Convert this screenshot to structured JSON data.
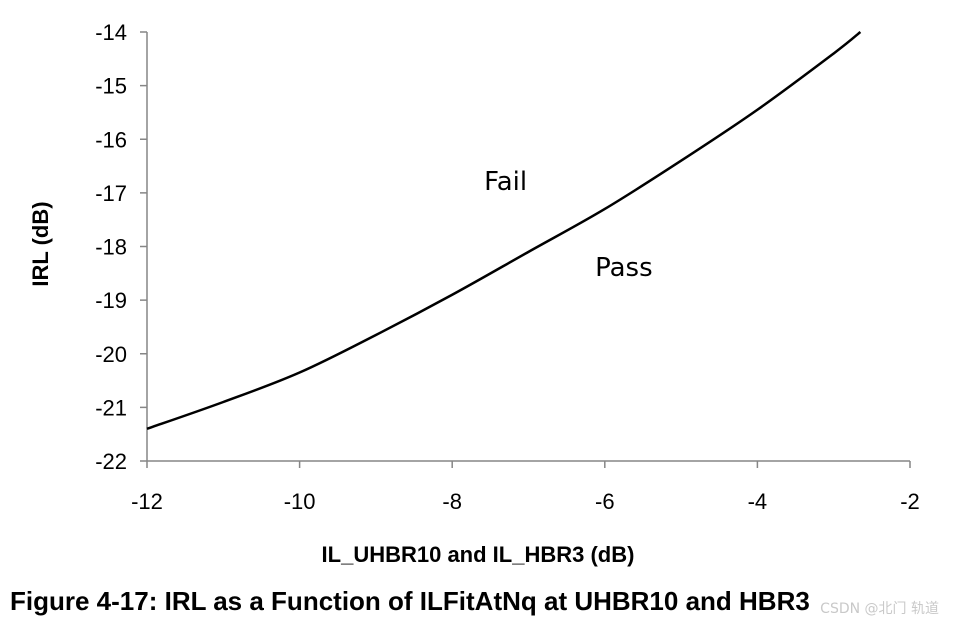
{
  "chart_data": {
    "type": "line",
    "title": "",
    "xlabel": "IL_UHBR10 and IL_HBR3 (dB)",
    "ylabel": "IRL (dB)",
    "xlim": [
      -12,
      -2
    ],
    "ylim": [
      -22,
      -14
    ],
    "xticks": [
      -12,
      -10,
      -8,
      -6,
      -4,
      -2
    ],
    "yticks": [
      -14,
      -15,
      -16,
      -17,
      -18,
      -19,
      -20,
      -21,
      -22
    ],
    "grid": false,
    "series": [
      {
        "color": "#000000",
        "x": [
          -12,
          -11,
          -10,
          -9,
          -8,
          -7,
          -6,
          -5,
          -4,
          -3,
          -2.65
        ],
        "y": [
          -21.4,
          -20.9,
          -20.35,
          -19.65,
          -18.9,
          -18.1,
          -17.3,
          -16.4,
          -15.45,
          -14.4,
          -14.0
        ]
      }
    ],
    "annotations": [
      {
        "text": "Fail",
        "x": -7.3,
        "y": -16.95
      },
      {
        "text": "Pass",
        "x": -5.75,
        "y": -18.55
      }
    ]
  },
  "caption": "Figure 4-17: IRL as a Function of ILFitAtNq at UHBR10 and HBR3",
  "watermark": "CSDN @北门 轨道"
}
